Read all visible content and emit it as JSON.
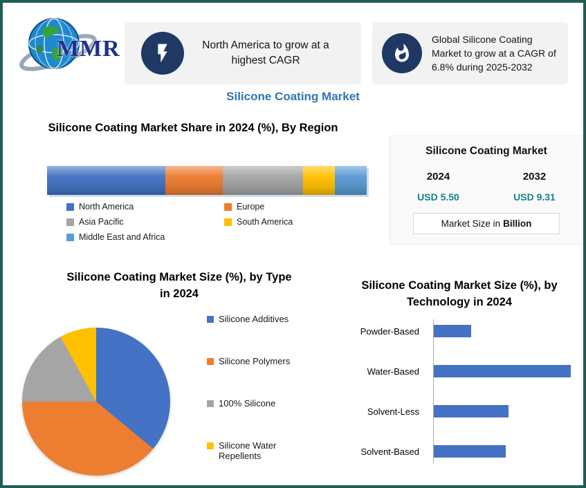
{
  "header": {
    "logo_text": "MMR",
    "callout1_text": "North America to grow at a highest CAGR",
    "callout2_text": "Global Silicone Coating Market to grow at a CAGR of 6.8% during 2025-2032",
    "page_title": "Silicone Coating Market"
  },
  "market_panel": {
    "title": "Silicone Coating Market",
    "year_left": "2024",
    "year_right": "2032",
    "value_left": "USD 5.50",
    "value_right": "USD 9.31",
    "note_plain": "Market Size in",
    "note_bold": "Billion"
  },
  "colors": {
    "border": "#1f5c55",
    "heading_blue": "#2e75b6",
    "value_teal": "#12808e",
    "icon_navy": "#1f3864",
    "callout_bg": "#f2f2f2",
    "series_blue": "#4472c4",
    "series_orange": "#ed7d31",
    "series_gray": "#a5a5a5",
    "series_yellow": "#ffc000",
    "series_lightblue": "#5b9bd5"
  },
  "chart_data": [
    {
      "id": "region_share",
      "type": "bar",
      "variant": "stacked-horizontal",
      "title": "Silicone Coating Market Share in 2024 (%), By Region",
      "categories": [
        "North America",
        "Europe",
        "Asia Pacific",
        "South America",
        "Middle East and Africa"
      ],
      "values": [
        37,
        18,
        25,
        10,
        10
      ],
      "colors": [
        "#4472c4",
        "#ed7d31",
        "#a5a5a5",
        "#ffc000",
        "#5b9bd5"
      ],
      "legend_position": "bottom",
      "xlim": [
        0,
        100
      ]
    },
    {
      "id": "type_share",
      "type": "pie",
      "title": "Silicone Coating Market Size (%), by Type in 2024",
      "categories": [
        "Silicone Additives",
        "Silicone Polymers",
        "100% Silicone",
        "Silicone Water Repellents"
      ],
      "values": [
        36,
        39,
        17,
        8
      ],
      "colors": [
        "#4472c4",
        "#ed7d31",
        "#a5a5a5",
        "#ffc000"
      ],
      "legend_position": "right"
    },
    {
      "id": "technology_share",
      "type": "bar",
      "variant": "horizontal",
      "title": "Silicone Coating Market Size (%), by Technology in 2024",
      "categories": [
        "Powder-Based",
        "Water-Based",
        "Solvent-Less",
        "Solvent-Based"
      ],
      "values": [
        12,
        44,
        24,
        23
      ],
      "color": "#4472c4",
      "xlim": [
        0,
        50
      ],
      "grid": false
    }
  ]
}
